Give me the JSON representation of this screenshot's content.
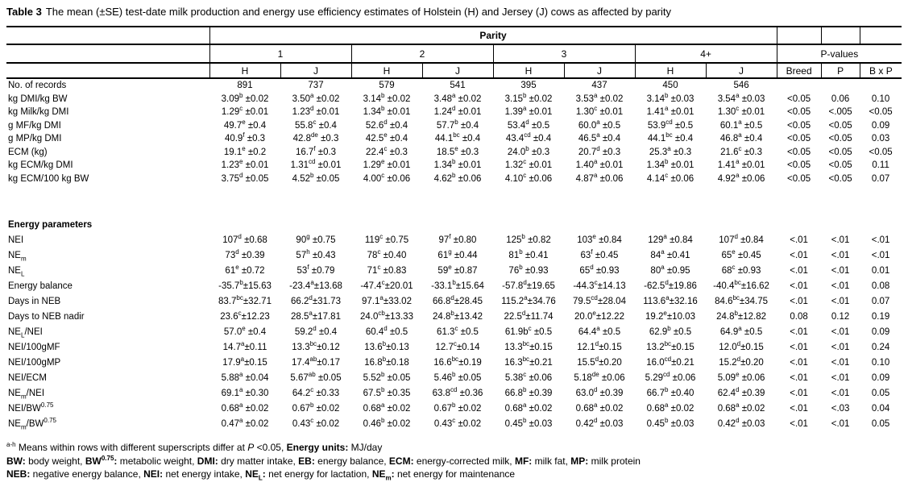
{
  "page": {
    "background": "#ffffff",
    "text_color": "#000000"
  },
  "title": {
    "label": "Table 3",
    "text": "The mean (±SE) test-date milk production and energy use efficiency estimates of Holstein (H) and Jersey (J) cows as affected by parity"
  },
  "table": {
    "parity_header": "Parity",
    "group_headers": [
      "1",
      "2",
      "3",
      "4+",
      "P-values"
    ],
    "col_headers": [
      "H",
      "J",
      "H",
      "J",
      "H",
      "J",
      "H",
      "J",
      "Breed",
      "P",
      "B x P"
    ],
    "sections": [
      {
        "heading": "",
        "rows": [
          {
            "label": "No. of records",
            "values": [
              "891",
              "737",
              "579",
              "541",
              "395",
              "437",
              "450",
              "546"
            ],
            "pvalues": [
              "",
              "",
              ""
            ]
          },
          {
            "label": "kg DMI/kg BW",
            "values": [
              "3.09^{b} ±0.02",
              "3.50^{a} ±0.02",
              "3.14^{b} ±0.02",
              "3.48^{a} ±0.02",
              "3.15^{b} ±0.02",
              "3.53^{a} ±0.02",
              "3.14^{b} ±0.03",
              "3.54^{a} ±0.03"
            ],
            "pvalues": [
              "<0.05",
              "0.06",
              "0.10"
            ]
          },
          {
            "label": "kg Milk/kg DMI",
            "values": [
              "1.29^{c} ±0.01",
              "1.23^{d} ±0.01",
              "1.34^{b} ±0.01",
              "1.24^{d} ±0.01",
              "1.39^{a} ±0.01",
              "1.30^{c} ±0.01",
              "1.41^{a} ±0.01",
              "1.30^{c} ±0.01"
            ],
            "pvalues": [
              "<0.05",
              "<.005",
              "<0.05"
            ]
          },
          {
            "label": "g MF/kg DMI",
            "values": [
              "49.7^{e} ±0.4",
              "55.8^{c} ±0.4",
              "52.6^{d} ±0.4",
              "57.7^{b} ±0.4",
              "53.4^{d} ±0.5",
              "60.0^{a} ±0.5",
              "53.9^{cd} ±0.5",
              "60.1^{a} ±0.5"
            ],
            "pvalues": [
              "<0.05",
              "<0.05",
              "0.09"
            ]
          },
          {
            "label": "g MP/kg DMI",
            "values": [
              "40.9^{f} ±0.3",
              "42.8^{de} ±0.3",
              "42.5^{e} ±0.4",
              "44.1^{bc} ±0.4",
              "43.4^{cd} ±0.4",
              "46.5^{a} ±0.4",
              "44.1^{bc} ±0.4",
              "46.8^{a} ±0.4"
            ],
            "pvalues": [
              "<0.05",
              "<0.05",
              "0.03"
            ]
          },
          {
            "label": "ECM (kg)",
            "values": [
              "19.1^{e} ±0.2",
              "16.7^{f} ±0.3",
              "22.4^{c} ±0.3",
              "18.5^{e} ±0.3",
              "24.0^{b} ±0.3",
              "20.7^{d} ±0.3",
              "25.3^{a} ±0.3",
              "21.6^{c} ±0.3"
            ],
            "pvalues": [
              "<0.05",
              "<0.05",
              "<0.05"
            ]
          },
          {
            "label": "kg ECM/kg DMI",
            "values": [
              "1.23^{e} ±0.01",
              "1.31^{cd} ±0.01",
              "1.29^{e} ±0.01",
              "1.34^{b} ±0.01",
              "1.32^{c} ±0.01",
              "1.40^{a} ±0.01",
              "1.34^{b} ±0.01",
              "1.41^{a} ±0.01"
            ],
            "pvalues": [
              "<0.05",
              "<0.05",
              "0.11"
            ]
          },
          {
            "label": "kg ECM/100 kg BW",
            "values": [
              "3.75^{d} ±0.05",
              "4.52^{b} ±0.05",
              "4.00^{c} ±0.06",
              "4.62^{b} ±0.06",
              "4.10^{c} ±0.06",
              "4.87^{a} ±0.06",
              "4.14^{c} ±0.06",
              "4.92^{a} ±0.06"
            ],
            "pvalues": [
              "<0.05",
              "<0.05",
              "0.07"
            ]
          }
        ]
      },
      {
        "heading": "Energy parameters",
        "rows": [
          {
            "label": "NEI",
            "values": [
              "107^{d} ±0.68",
              "90^{g} ±0.75",
              "119^{c} ±0.75",
              "97^{f} ±0.80",
              "125^{b} ±0.82",
              "103^{e} ±0.84",
              "129^{a} ±0.84",
              "107^{d} ±0.84"
            ],
            "pvalues": [
              "<.01",
              "<.01",
              "<.01"
            ]
          },
          {
            "label": "NE_{m}",
            "values": [
              "73^{d} ±0.39",
              "57^{h} ±0.43",
              "78^{c} ±0.40",
              "61^{g} ±0.44",
              "81^{b} ±0.41",
              "63^{f} ±0.45",
              "84^{a} ±0.41",
              "65^{e} ±0.45"
            ],
            "pvalues": [
              "<.01",
              "<.01",
              "<.01"
            ]
          },
          {
            "label": "NE_{L}",
            "values": [
              "61^{e} ±0.72",
              "53^{f} ±0.79",
              "71^{c} ±0.83",
              "59^{e} ±0.87",
              "76^{b} ±0.93",
              "65^{d} ±0.93",
              "80^{a} ±0.95",
              "68^{c} ±0.93"
            ],
            "pvalues": [
              "<.01",
              "<.01",
              "0.01"
            ]
          },
          {
            "label": "Energy balance",
            "values": [
              "-35.7^{b}±15.63",
              "-23.4^{a}±13.68",
              "-47.4^{c}±20.01",
              "-33.1^{b}±15.64",
              "-57.8^{d}±19.65",
              "-44.3^{c}±14.13",
              "-62.5^{d}±19.86",
              "-40.4^{bc}±16.62"
            ],
            "pvalues": [
              "<.01",
              "<.01",
              "0.08"
            ]
          },
          {
            "label": "Days in NEB",
            "values": [
              "83.7^{bc}±32.71",
              "66.2^{d}±31.73",
              "97.1^{a}±33.02",
              "66.8^{d}±28.45",
              "115.2^{a}±34.76",
              "79.5^{cd}±28.04",
              "113.6^{a}±32.16",
              "84.6^{bc}±34.75"
            ],
            "pvalues": [
              "<.01",
              "<.01",
              "0.07"
            ]
          },
          {
            "label": "Days to NEB nadir",
            "values": [
              "23.6^{c}±12.23",
              "28.5^{a}±17.81",
              "24.0^{cb}±13.33",
              "24.8^{b}±13.42",
              "22.5^{d}±11.74",
              "20.0^{e}±12.22",
              "19.2^{e}±10.03",
              "24.8^{b}±12.82"
            ],
            "pvalues": [
              "0.08",
              "0.12",
              "0.19"
            ]
          },
          {
            "label": "NE_{L}/NEI",
            "values": [
              "57.0^{e} ±0.4",
              "59.2^{d} ±0.4",
              "60.4^{d} ±0.5",
              "61.3^{c} ±0.5",
              "61.9b^{c} ±0.5",
              "64.4^{a} ±0.5",
              "62.9^{b} ±0.5",
              "64.9^{a} ±0.5"
            ],
            "pvalues": [
              "<.01",
              "<.01",
              "0.09"
            ]
          },
          {
            "label": "NEI/100gMF",
            "values": [
              "14.7^{a}±0.11",
              "13.3^{bc}±0.12",
              "13.6^{b}±0.13",
              "12.7^{c}±0.14",
              "13.3^{bc}±0.15",
              "12.1^{d}±0.15",
              "13.2^{bc}±0.15",
              "12.0^{d}±0.15"
            ],
            "pvalues": [
              "<.01",
              "<.01",
              "0.24"
            ]
          },
          {
            "label": "NEI/100gMP",
            "values": [
              "17.9^{a}±0.15",
              "17.4^{ab}±0.17",
              "16.8^{b}±0.18",
              "16.6^{bc}±0.19",
              "16.3^{bc}±0.21",
              "15.5^{d}±0.20",
              "16.0^{cd}±0.21",
              "15.2^{d}±0.20"
            ],
            "pvalues": [
              "<.01",
              "<.01",
              "0.10"
            ]
          },
          {
            "label": "NEI/ECM",
            "values": [
              "5.88^{a} ±0.04",
              "5.67^{ab} ±0.05",
              "5.52^{b} ±0.05",
              "5.46^{b} ±0.05",
              "5.38^{c} ±0.06",
              "5.18^{de} ±0.06",
              "5.29^{cd} ±0.06",
              "5.09^{e} ±0.06"
            ],
            "pvalues": [
              "<.01",
              "<.01",
              "0.09"
            ]
          },
          {
            "label": "NE_{m}/NEI",
            "values": [
              "69.1^{a} ±0.30",
              "64.2^{c} ±0.33",
              "67.5^{b} ±0.35",
              "63.8^{cd} ±0.36",
              "66.8^{b} ±0.39",
              "63.0^{d} ±0.39",
              "66.7^{b} ±0.40",
              "62.4^{d} ±0.39"
            ],
            "pvalues": [
              "<.01",
              "<.01",
              "0.05"
            ]
          },
          {
            "label": "NEI/BW^{0.75}",
            "values": [
              "0.68^{a} ±0.02",
              "0.67^{b} ±0.02",
              "0.68^{a} ±0.02",
              "0.67^{b} ±0.02",
              "0.68^{a} ±0.02",
              "0.68^{a} ±0.02",
              "0.68^{a} ±0.02",
              "0.68^{a} ±0.02"
            ],
            "pvalues": [
              "<.01",
              "<.03",
              "0.04"
            ]
          },
          {
            "label": "NE_{m}/BW^{0.75}",
            "values": [
              "0.47^{a} ±0.02",
              "0.43^{c} ±0.02",
              "0.46^{b} ±0.02",
              "0.43^{c} ±0.02",
              "0.45^{b} ±0.03",
              "0.42^{d} ±0.03",
              "0.45^{b} ±0.03",
              "0.42^{d} ±0.03"
            ],
            "pvalues": [
              "<.01",
              "<.01",
              "0.05"
            ]
          }
        ]
      }
    ]
  },
  "footnotes": [
    "^{a-h} Means within rows with different superscripts differ at *P* <0.05, **Energy units:** MJ/day",
    "**BW:** body weight, **BW^{0.75}:** metabolic weight, **DMI:** dry matter intake, **EB:** energy balance, **ECM:** energy-corrected milk, **MF:** milk fat, **MP:** milk protein",
    "**NEB:** negative energy balance, **NEI:** net energy intake, **NE_{L}:**  net energy for lactation, **NE_{m}:** net energy for maintenance"
  ]
}
